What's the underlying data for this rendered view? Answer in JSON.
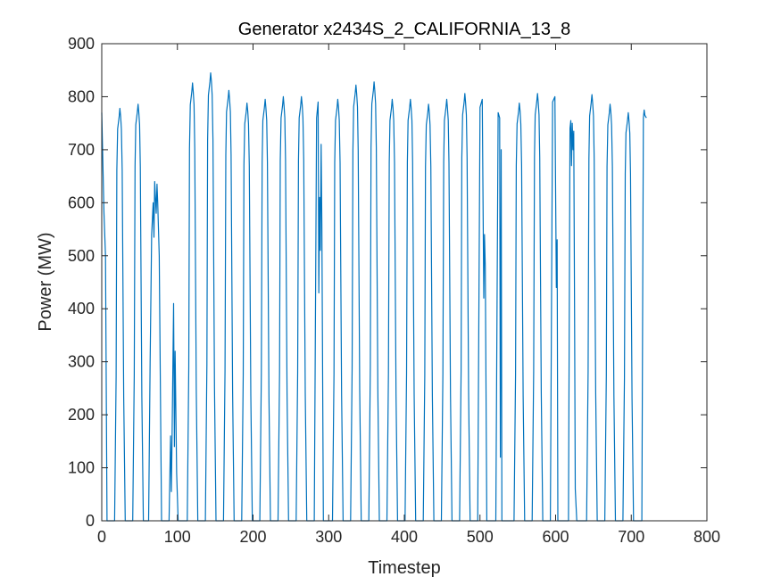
{
  "chart_data": {
    "type": "line",
    "title": "Generator x2434S_2_CALIFORNIA_13_8",
    "xlabel": "Timestep",
    "ylabel": "Power (MW)",
    "xlim": [
      0,
      800
    ],
    "ylim": [
      0,
      900
    ],
    "xticks": [
      0,
      100,
      200,
      300,
      400,
      500,
      600,
      700,
      800
    ],
    "yticks": [
      0,
      100,
      200,
      300,
      400,
      500,
      600,
      700,
      800,
      900
    ],
    "grid": false,
    "line_color": "#0072BD",
    "series": [
      {
        "peaks": [
          {
            "center": 1,
            "peak": 770,
            "dips": [
              [
                0,
                770
              ],
              [
                3,
                580
              ],
              [
                5,
                500
              ],
              [
                7,
                0
              ]
            ]
          },
          {
            "center": 24,
            "peak": 778
          },
          {
            "center": 48,
            "peak": 786
          },
          {
            "center": 72,
            "peak": 640,
            "dips": [
              [
                62,
                0
              ],
              [
                64,
                300
              ],
              [
                66,
                540
              ],
              [
                68,
                600
              ],
              [
                69,
                535
              ],
              [
                70,
                640
              ],
              [
                72,
                580
              ],
              [
                73,
                635
              ],
              [
                74,
                600
              ],
              [
                76,
                500
              ],
              [
                79,
                0
              ]
            ]
          },
          {
            "center": 96,
            "peak": 410,
            "dips": [
              [
                89,
                0
              ],
              [
                91,
                160
              ],
              [
                92,
                55
              ],
              [
                93,
                160
              ],
              [
                95,
                410
              ],
              [
                96,
                140
              ],
              [
                97,
                320
              ],
              [
                99,
                90
              ],
              [
                101,
                0
              ]
            ]
          },
          {
            "center": 120,
            "peak": 826
          },
          {
            "center": 144,
            "peak": 845
          },
          {
            "center": 168,
            "peak": 812
          },
          {
            "center": 192,
            "peak": 788
          },
          {
            "center": 216,
            "peak": 795
          },
          {
            "center": 240,
            "peak": 800
          },
          {
            "center": 264,
            "peak": 800
          },
          {
            "center": 288,
            "peak": 790,
            "dips": [
              [
                281,
                0
              ],
              [
                284,
                760
              ],
              [
                286,
                790
              ],
              [
                287,
                430
              ],
              [
                288,
                610
              ],
              [
                289,
                510
              ],
              [
                290,
                710
              ],
              [
                291,
                560
              ],
              [
                293,
                0
              ]
            ]
          },
          {
            "center": 312,
            "peak": 795
          },
          {
            "center": 336,
            "peak": 822
          },
          {
            "center": 360,
            "peak": 828
          },
          {
            "center": 384,
            "peak": 795
          },
          {
            "center": 408,
            "peak": 795
          },
          {
            "center": 432,
            "peak": 786
          },
          {
            "center": 456,
            "peak": 795
          },
          {
            "center": 480,
            "peak": 806
          },
          {
            "center": 504,
            "peak": 795,
            "dips": [
              [
                497,
                0
              ],
              [
                500,
                780
              ],
              [
                503,
                795
              ],
              [
                505,
                420
              ],
              [
                506,
                540
              ],
              [
                507,
                480
              ],
              [
                509,
                0
              ]
            ]
          },
          {
            "center": 528,
            "peak": 780,
            "dips": [
              [
                521,
                0
              ],
              [
                524,
                770
              ],
              [
                526,
                760
              ],
              [
                527,
                120
              ],
              [
                528,
                700
              ],
              [
                529,
                0
              ]
            ]
          },
          {
            "center": 552,
            "peak": 788
          },
          {
            "center": 576,
            "peak": 806
          },
          {
            "center": 600,
            "peak": 806,
            "dips": [
              [
                593,
                0
              ],
              [
                596,
                790
              ],
              [
                599,
                800
              ],
              [
                601,
                440
              ],
              [
                602,
                530
              ],
              [
                603,
                0
              ]
            ]
          },
          {
            "center": 624,
            "peak": 755,
            "dips": [
              [
                617,
                0
              ],
              [
                619,
                740
              ],
              [
                620,
                755
              ],
              [
                621,
                670
              ],
              [
                622,
                750
              ],
              [
                623,
                700
              ],
              [
                624,
                735
              ],
              [
                625,
                400
              ],
              [
                626,
                60
              ],
              [
                628,
                0
              ]
            ]
          },
          {
            "center": 648,
            "peak": 804
          },
          {
            "center": 672,
            "peak": 786
          },
          {
            "center": 696,
            "peak": 770
          },
          {
            "center": 720,
            "peak": 775,
            "dips": [
              [
                714,
                0
              ],
              [
                716,
                760
              ],
              [
                717,
                775
              ],
              [
                718,
                765
              ],
              [
                720,
                760
              ]
            ]
          }
        ]
      }
    ]
  }
}
